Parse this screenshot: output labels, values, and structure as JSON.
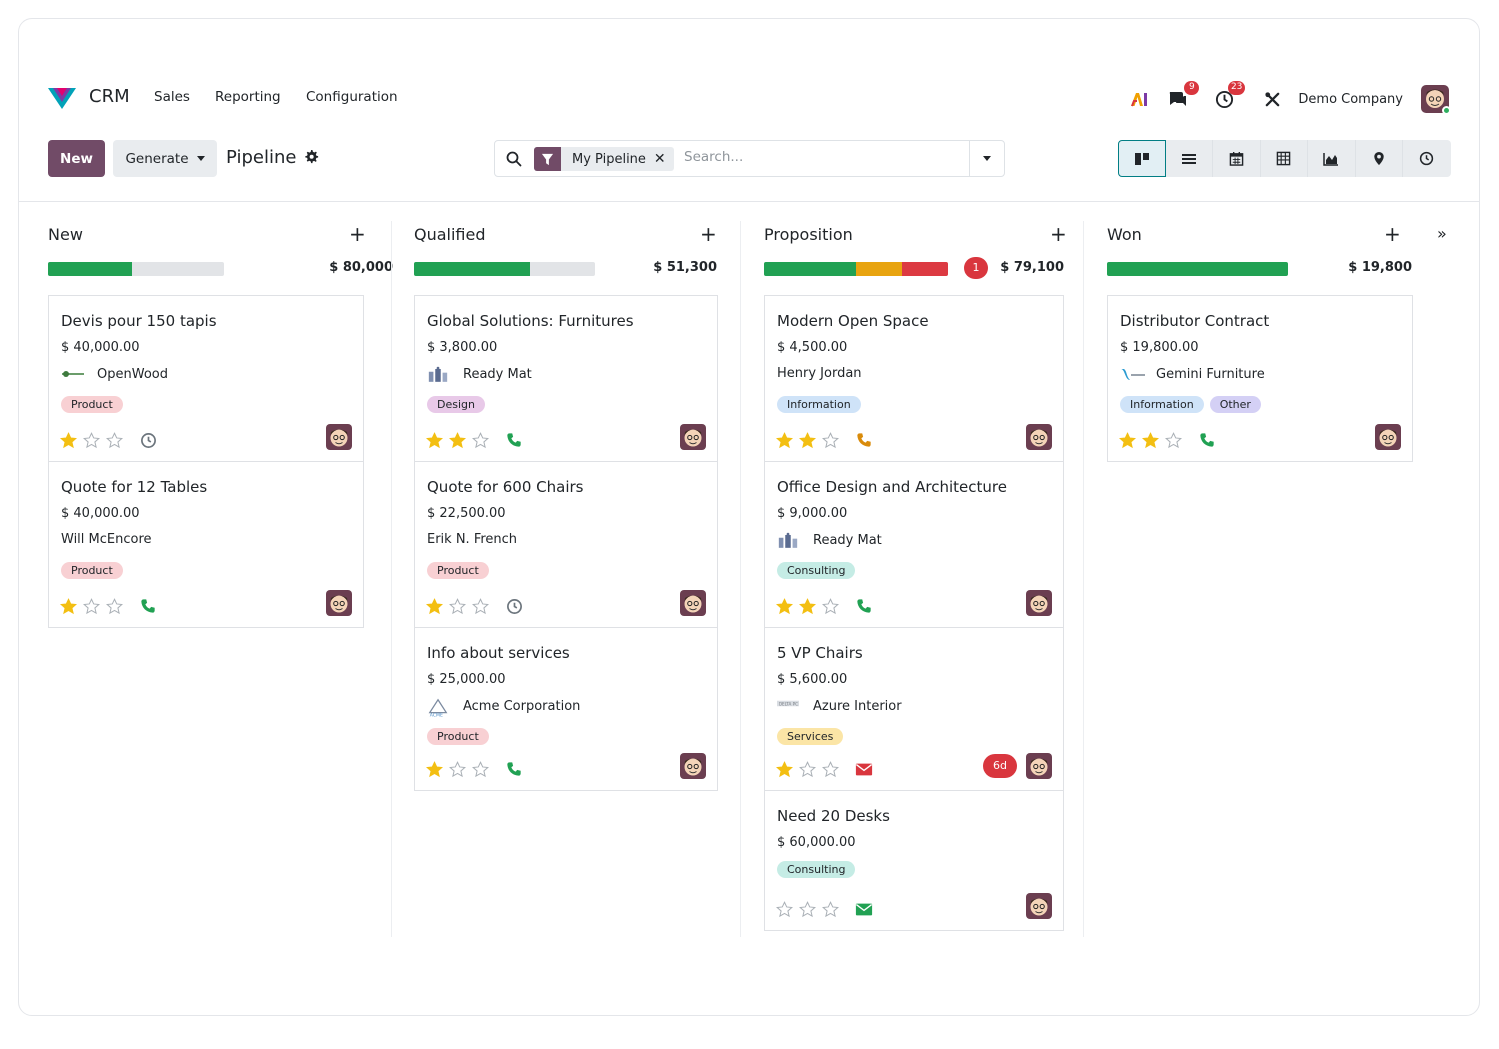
{
  "app": {
    "brand": "CRM",
    "menu": [
      "Sales",
      "Reporting",
      "Configuration"
    ],
    "systray": {
      "ai_icon": "ai-icon",
      "messages_count": "9",
      "activities_count": "23",
      "company": "Demo Company"
    }
  },
  "control_panel": {
    "new_label": "New",
    "generate_label": "Generate",
    "title": "Pipeline",
    "search": {
      "facet_label": "My Pipeline",
      "placeholder": "Search..."
    },
    "views": [
      "kanban",
      "list",
      "calendar",
      "pivot",
      "graph",
      "map",
      "activity"
    ]
  },
  "colors": {
    "primary": "#714b67",
    "accent": "#017e84",
    "star": "#f3bf12",
    "phone": "#21a153",
    "danger": "#d9363e"
  },
  "columns": [
    {
      "title": "New",
      "total": "$ 80,000",
      "progress": [
        {
          "color": "green",
          "fraction": 0.48
        }
      ],
      "count_badge": "",
      "cards": [
        {
          "name": "Devis pour 150 tapis",
          "amount": "$ 40,000.00",
          "partner": "OpenWood",
          "partner_logo": "openwood-logo",
          "tags": [
            "Product"
          ],
          "stars": 1,
          "activity": "clock",
          "overdue": ""
        },
        {
          "name": "Quote for 12 Tables",
          "amount": "$ 40,000.00",
          "partner": "Will McEncore",
          "partner_logo": "",
          "tags": [
            "Product"
          ],
          "stars": 1,
          "activity": "phone",
          "overdue": ""
        }
      ]
    },
    {
      "title": "Qualified",
      "total": "$ 51,300",
      "progress": [
        {
          "color": "green",
          "fraction": 0.64
        }
      ],
      "count_badge": "",
      "cards": [
        {
          "name": "Global Solutions: Furnitures",
          "amount": "$ 3,800.00",
          "partner": "Ready Mat",
          "partner_logo": "readymat-logo",
          "tags": [
            "Design"
          ],
          "stars": 2,
          "activity": "phone",
          "overdue": ""
        },
        {
          "name": "Quote for 600 Chairs",
          "amount": "$ 22,500.00",
          "partner": "Erik N. French",
          "partner_logo": "",
          "tags": [
            "Product"
          ],
          "stars": 1,
          "activity": "clock",
          "overdue": ""
        },
        {
          "name": "Info about services",
          "amount": "$ 25,000.00",
          "partner": "Acme Corporation",
          "partner_logo": "acme-logo",
          "tags": [
            "Product"
          ],
          "stars": 1,
          "activity": "phone",
          "overdue": ""
        }
      ]
    },
    {
      "title": "Proposition",
      "total": "$ 79,100",
      "progress": [
        {
          "color": "green",
          "fraction": 0.5
        },
        {
          "color": "orange",
          "fraction": 0.25
        },
        {
          "color": "red",
          "fraction": 0.25
        }
      ],
      "count_badge": "1",
      "cards": [
        {
          "name": "Modern Open Space",
          "amount": "$ 4,500.00",
          "partner": "Henry Jordan",
          "partner_logo": "",
          "tags": [
            "Information"
          ],
          "stars": 2,
          "activity": "phone-orange",
          "overdue": ""
        },
        {
          "name": "Office Design and Architecture",
          "amount": "$ 9,000.00",
          "partner": "Ready Mat",
          "partner_logo": "readymat-logo",
          "tags": [
            "Consulting"
          ],
          "stars": 2,
          "activity": "phone",
          "overdue": ""
        },
        {
          "name": "5 VP Chairs",
          "amount": "$ 5,600.00",
          "partner": "Azure Interior",
          "partner_logo": "azure-logo",
          "tags": [
            "Services"
          ],
          "stars": 1,
          "activity": "envelope-red",
          "overdue": "6d"
        },
        {
          "name": "Need 20 Desks",
          "amount": "$ 60,000.00",
          "partner": "",
          "partner_logo": "",
          "tags": [
            "Consulting"
          ],
          "stars": 0,
          "activity": "envelope-green",
          "overdue": ""
        }
      ]
    },
    {
      "title": "Won",
      "total": "$ 19,800",
      "progress": [
        {
          "color": "green",
          "fraction": 1.0
        }
      ],
      "count_badge": "",
      "cards": [
        {
          "name": "Distributor Contract",
          "amount": "$ 19,800.00",
          "partner": "Gemini Furniture",
          "partner_logo": "gemini-logo",
          "tags": [
            "Information",
            "Other"
          ],
          "stars": 2,
          "activity": "phone",
          "overdue": ""
        }
      ]
    }
  ]
}
